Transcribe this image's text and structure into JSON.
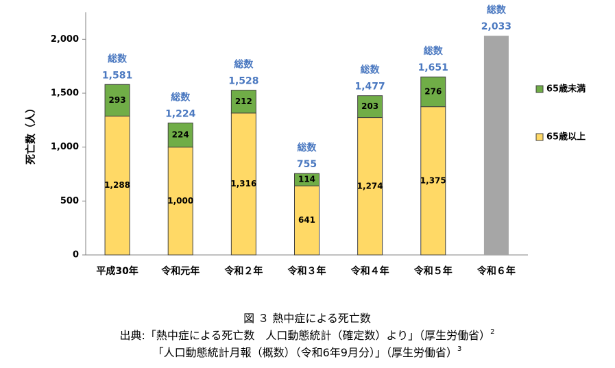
{
  "chart_data": {
    "type": "stacked_bar",
    "y_label": "死亡数（人）",
    "categories": [
      "平成30年",
      "令和元年",
      "令和２年",
      "令和３年",
      "令和４年",
      "令和５年",
      "令和６年"
    ],
    "series": [
      {
        "name": "65歳以上",
        "color": "#ffd966",
        "values": [
          1288,
          1000,
          1316,
          641,
          1274,
          1375,
          null
        ],
        "value_labels": [
          "1,288",
          "1,000",
          "1,316",
          "641",
          "1,274",
          "1,375",
          null
        ]
      },
      {
        "name": "65歳未満",
        "color": "#70ad47",
        "values": [
          293,
          224,
          212,
          114,
          203,
          276,
          null
        ]
      }
    ],
    "totals": {
      "label": "総数",
      "color": "#a6a6a6",
      "values": [
        1581,
        1224,
        1528,
        755,
        1477,
        1651,
        2033
      ],
      "value_labels": [
        "1,581",
        "1,224",
        "1,528",
        "755",
        "1,477",
        "1,651",
        "2,033"
      ]
    },
    "ylim": [
      0,
      2250
    ],
    "yticks": [
      0,
      500,
      {
        "value": 1000,
        "label": "1,000"
      },
      {
        "value": 1500,
        "label": "1,500"
      },
      {
        "value": 2000,
        "label": "2,000"
      }
    ],
    "caption": [
      {
        "text": "図 ３ 熱中症による死亡数"
      },
      {
        "text": "出典:「熱中症による死亡数　人口動態統計（確定数）より」（厚生労働省）",
        "sup": "2"
      },
      {
        "text": "「人口動態統計月報（概数）（令和6年9月分）」（厚生労働省）",
        "sup": "3"
      }
    ]
  }
}
